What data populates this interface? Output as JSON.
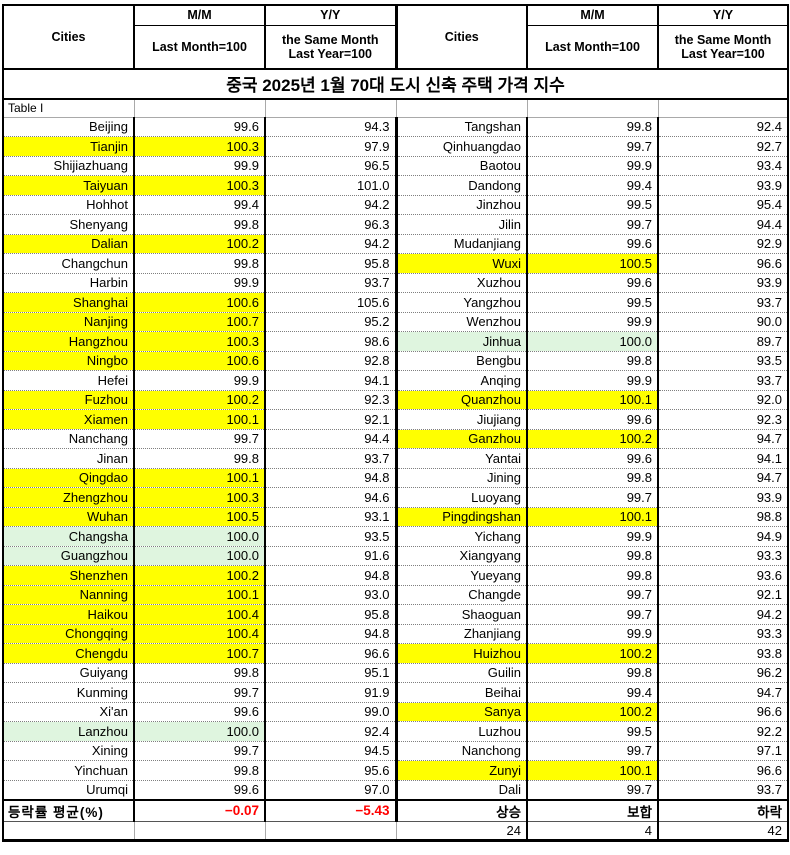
{
  "title": "중국 2025년 1월 70대 도시 신축 주택 가격 지수",
  "table_label": "Table I",
  "header": {
    "cities": "Cities",
    "mm": "M/M",
    "mm_sub": "Last Month=100",
    "yy": "Y/Y",
    "yy_sub_line1": "the Same Month",
    "yy_sub_line2": "Last Year=100"
  },
  "colors": {
    "highlight_rise": "#FFFF00",
    "highlight_flat": "#DFF5DF",
    "negative_text": "#FF0000"
  },
  "left_rows": [
    {
      "city": "Beijing",
      "mm": "99.6",
      "yy": "94.3",
      "hl": ""
    },
    {
      "city": "Tianjin",
      "mm": "100.3",
      "yy": "97.9",
      "hl": "y"
    },
    {
      "city": "Shijiazhuang",
      "mm": "99.9",
      "yy": "96.5",
      "hl": ""
    },
    {
      "city": "Taiyuan",
      "mm": "100.3",
      "yy": "101.0",
      "hl": "y"
    },
    {
      "city": "Hohhot",
      "mm": "99.4",
      "yy": "94.2",
      "hl": ""
    },
    {
      "city": "Shenyang",
      "mm": "99.8",
      "yy": "96.3",
      "hl": ""
    },
    {
      "city": "Dalian",
      "mm": "100.2",
      "yy": "94.2",
      "hl": "y"
    },
    {
      "city": "Changchun",
      "mm": "99.8",
      "yy": "95.8",
      "hl": ""
    },
    {
      "city": "Harbin",
      "mm": "99.9",
      "yy": "93.7",
      "hl": ""
    },
    {
      "city": "Shanghai",
      "mm": "100.6",
      "yy": "105.6",
      "hl": "y"
    },
    {
      "city": "Nanjing",
      "mm": "100.7",
      "yy": "95.2",
      "hl": "y"
    },
    {
      "city": "Hangzhou",
      "mm": "100.3",
      "yy": "98.6",
      "hl": "y"
    },
    {
      "city": "Ningbo",
      "mm": "100.6",
      "yy": "92.8",
      "hl": "y"
    },
    {
      "city": "Hefei",
      "mm": "99.9",
      "yy": "94.1",
      "hl": ""
    },
    {
      "city": "Fuzhou",
      "mm": "100.2",
      "yy": "92.3",
      "hl": "y"
    },
    {
      "city": "Xiamen",
      "mm": "100.1",
      "yy": "92.1",
      "hl": "y"
    },
    {
      "city": "Nanchang",
      "mm": "99.7",
      "yy": "94.4",
      "hl": ""
    },
    {
      "city": "Jinan",
      "mm": "99.8",
      "yy": "93.7",
      "hl": ""
    },
    {
      "city": "Qingdao",
      "mm": "100.1",
      "yy": "94.8",
      "hl": "y"
    },
    {
      "city": "Zhengzhou",
      "mm": "100.3",
      "yy": "94.6",
      "hl": "y"
    },
    {
      "city": "Wuhan",
      "mm": "100.5",
      "yy": "93.1",
      "hl": "y"
    },
    {
      "city": "Changsha",
      "mm": "100.0",
      "yy": "93.5",
      "hl": "g"
    },
    {
      "city": "Guangzhou",
      "mm": "100.0",
      "yy": "91.6",
      "hl": "g"
    },
    {
      "city": "Shenzhen",
      "mm": "100.2",
      "yy": "94.8",
      "hl": "y"
    },
    {
      "city": "Nanning",
      "mm": "100.1",
      "yy": "93.0",
      "hl": "y"
    },
    {
      "city": "Haikou",
      "mm": "100.4",
      "yy": "95.8",
      "hl": "y"
    },
    {
      "city": "Chongqing",
      "mm": "100.4",
      "yy": "94.8",
      "hl": "y"
    },
    {
      "city": "Chengdu",
      "mm": "100.7",
      "yy": "96.6",
      "hl": "y"
    },
    {
      "city": "Guiyang",
      "mm": "99.8",
      "yy": "95.1",
      "hl": ""
    },
    {
      "city": "Kunming",
      "mm": "99.7",
      "yy": "91.9",
      "hl": ""
    },
    {
      "city": "Xi'an",
      "mm": "99.6",
      "yy": "99.0",
      "hl": ""
    },
    {
      "city": "Lanzhou",
      "mm": "100.0",
      "yy": "92.4",
      "hl": "g"
    },
    {
      "city": "Xining",
      "mm": "99.7",
      "yy": "94.5",
      "hl": ""
    },
    {
      "city": "Yinchuan",
      "mm": "99.8",
      "yy": "95.6",
      "hl": ""
    },
    {
      "city": "Urumqi",
      "mm": "99.6",
      "yy": "97.0",
      "hl": ""
    }
  ],
  "right_rows": [
    {
      "city": "Tangshan",
      "mm": "99.8",
      "yy": "92.4",
      "hl": ""
    },
    {
      "city": "Qinhuangdao",
      "mm": "99.7",
      "yy": "92.7",
      "hl": ""
    },
    {
      "city": "Baotou",
      "mm": "99.9",
      "yy": "93.4",
      "hl": ""
    },
    {
      "city": "Dandong",
      "mm": "99.4",
      "yy": "93.9",
      "hl": ""
    },
    {
      "city": "Jinzhou",
      "mm": "99.5",
      "yy": "95.4",
      "hl": ""
    },
    {
      "city": "Jilin",
      "mm": "99.7",
      "yy": "94.4",
      "hl": ""
    },
    {
      "city": "Mudanjiang",
      "mm": "99.6",
      "yy": "92.9",
      "hl": ""
    },
    {
      "city": "Wuxi",
      "mm": "100.5",
      "yy": "96.6",
      "hl": "y"
    },
    {
      "city": "Xuzhou",
      "mm": "99.6",
      "yy": "93.9",
      "hl": ""
    },
    {
      "city": "Yangzhou",
      "mm": "99.5",
      "yy": "93.7",
      "hl": ""
    },
    {
      "city": "Wenzhou",
      "mm": "99.9",
      "yy": "90.0",
      "hl": ""
    },
    {
      "city": "Jinhua",
      "mm": "100.0",
      "yy": "89.7",
      "hl": "g"
    },
    {
      "city": "Bengbu",
      "mm": "99.8",
      "yy": "93.5",
      "hl": ""
    },
    {
      "city": "Anqing",
      "mm": "99.9",
      "yy": "93.7",
      "hl": ""
    },
    {
      "city": "Quanzhou",
      "mm": "100.1",
      "yy": "92.0",
      "hl": "y"
    },
    {
      "city": "Jiujiang",
      "mm": "99.6",
      "yy": "92.3",
      "hl": ""
    },
    {
      "city": "Ganzhou",
      "mm": "100.2",
      "yy": "94.7",
      "hl": "y"
    },
    {
      "city": "Yantai",
      "mm": "99.6",
      "yy": "94.1",
      "hl": ""
    },
    {
      "city": "Jining",
      "mm": "99.8",
      "yy": "94.7",
      "hl": ""
    },
    {
      "city": "Luoyang",
      "mm": "99.7",
      "yy": "93.9",
      "hl": ""
    },
    {
      "city": "Pingdingshan",
      "mm": "100.1",
      "yy": "98.8",
      "hl": "y"
    },
    {
      "city": "Yichang",
      "mm": "99.9",
      "yy": "94.9",
      "hl": ""
    },
    {
      "city": "Xiangyang",
      "mm": "99.8",
      "yy": "93.3",
      "hl": ""
    },
    {
      "city": "Yueyang",
      "mm": "99.8",
      "yy": "93.6",
      "hl": ""
    },
    {
      "city": "Changde",
      "mm": "99.7",
      "yy": "92.1",
      "hl": ""
    },
    {
      "city": "Shaoguan",
      "mm": "99.7",
      "yy": "94.2",
      "hl": ""
    },
    {
      "city": "Zhanjiang",
      "mm": "99.9",
      "yy": "93.3",
      "hl": ""
    },
    {
      "city": "Huizhou",
      "mm": "100.2",
      "yy": "93.8",
      "hl": "y"
    },
    {
      "city": "Guilin",
      "mm": "99.8",
      "yy": "96.2",
      "hl": ""
    },
    {
      "city": "Beihai",
      "mm": "99.4",
      "yy": "94.7",
      "hl": ""
    },
    {
      "city": "Sanya",
      "mm": "100.2",
      "yy": "96.6",
      "hl": "y"
    },
    {
      "city": "Luzhou",
      "mm": "99.5",
      "yy": "92.2",
      "hl": ""
    },
    {
      "city": "Nanchong",
      "mm": "99.7",
      "yy": "97.1",
      "hl": ""
    },
    {
      "city": "Zunyi",
      "mm": "100.1",
      "yy": "96.6",
      "hl": "y"
    },
    {
      "city": "Dali",
      "mm": "99.7",
      "yy": "93.7",
      "hl": ""
    }
  ],
  "summary": {
    "label": "등락률 평균(%)",
    "mm_avg": "−0.07",
    "yy_avg": "−5.43",
    "up_label": "상승",
    "flat_label": "보합",
    "down_label": "하락",
    "up_count": "24",
    "flat_count": "4",
    "down_count": "42"
  }
}
